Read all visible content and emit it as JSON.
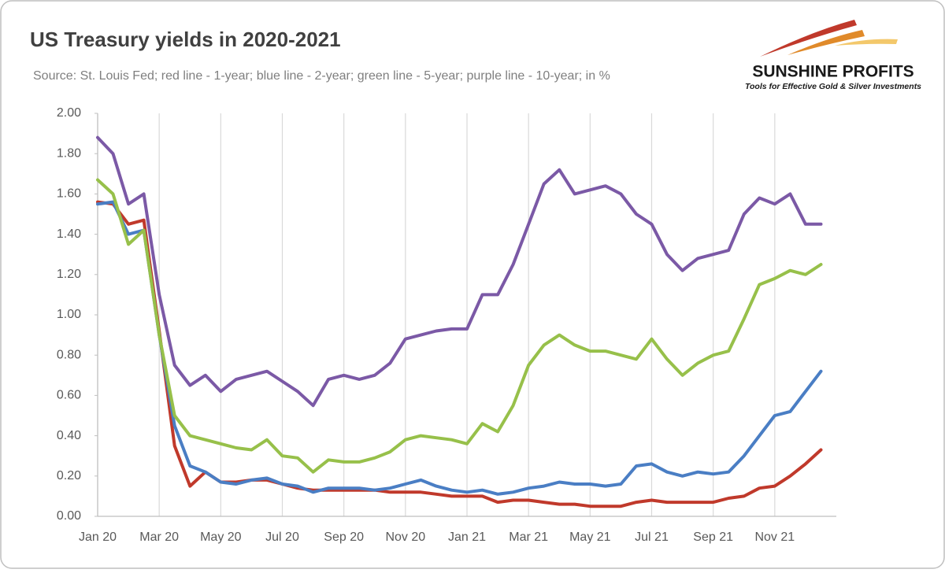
{
  "chart_data": {
    "type": "line",
    "title": "US Treasury  yields in 2020-2021",
    "subtitle": "Source: St. Louis Fed; red line - 1-year; blue line - 2-year; green line - 5-year; purple line - 10-year; in %",
    "categories": [
      "Jan 20",
      null,
      null,
      null,
      "Mar 20",
      null,
      null,
      null,
      "May 20",
      null,
      null,
      null,
      "Jul 20",
      null,
      null,
      null,
      "Sep 20",
      null,
      null,
      null,
      "Nov 20",
      null,
      null,
      null,
      "Jan 21",
      null,
      null,
      null,
      "Mar 21",
      null,
      null,
      null,
      "May 21",
      null,
      null,
      null,
      "Jul 21",
      null,
      null,
      null,
      "Sep 21",
      null,
      null,
      null,
      "Nov 21",
      null,
      null,
      null
    ],
    "series": [
      {
        "color": "#c0392b",
        "values": [
          1.56,
          1.55,
          1.45,
          1.47,
          0.92,
          0.35,
          0.15,
          0.22,
          0.17,
          0.17,
          0.18,
          0.18,
          0.16,
          0.14,
          0.13,
          0.13,
          0.13,
          0.13,
          0.13,
          0.12,
          0.12,
          0.12,
          0.11,
          0.1,
          0.1,
          0.1,
          0.07,
          0.08,
          0.08,
          0.07,
          0.06,
          0.06,
          0.05,
          0.05,
          0.05,
          0.07,
          0.08,
          0.07,
          0.07,
          0.07,
          0.07,
          0.09,
          0.1,
          0.14,
          0.15,
          0.2,
          0.26,
          0.33
        ]
      },
      {
        "color": "#4a7ec4",
        "values": [
          1.55,
          1.56,
          1.4,
          1.42,
          0.9,
          0.45,
          0.25,
          0.22,
          0.17,
          0.16,
          0.18,
          0.19,
          0.16,
          0.15,
          0.12,
          0.14,
          0.14,
          0.14,
          0.13,
          0.14,
          0.16,
          0.18,
          0.15,
          0.13,
          0.12,
          0.13,
          0.11,
          0.12,
          0.14,
          0.15,
          0.17,
          0.16,
          0.16,
          0.15,
          0.16,
          0.25,
          0.26,
          0.22,
          0.2,
          0.22,
          0.21,
          0.22,
          0.3,
          0.4,
          0.5,
          0.52,
          0.62,
          0.72
        ]
      },
      {
        "color": "#97c04a",
        "values": [
          1.67,
          1.6,
          1.35,
          1.42,
          0.9,
          0.5,
          0.4,
          0.38,
          0.36,
          0.34,
          0.33,
          0.38,
          0.3,
          0.29,
          0.22,
          0.28,
          0.27,
          0.27,
          0.29,
          0.32,
          0.38,
          0.4,
          0.39,
          0.38,
          0.36,
          0.46,
          0.42,
          0.55,
          0.75,
          0.85,
          0.9,
          0.85,
          0.82,
          0.82,
          0.8,
          0.78,
          0.88,
          0.78,
          0.7,
          0.76,
          0.8,
          0.82,
          0.98,
          1.15,
          1.18,
          1.22,
          1.2,
          1.25
        ]
      },
      {
        "color": "#7b59a6",
        "values": [
          1.88,
          1.8,
          1.55,
          1.6,
          1.1,
          0.75,
          0.65,
          0.7,
          0.62,
          0.68,
          0.7,
          0.72,
          0.67,
          0.62,
          0.55,
          0.68,
          0.7,
          0.68,
          0.7,
          0.76,
          0.88,
          0.9,
          0.92,
          0.93,
          0.93,
          1.1,
          1.1,
          1.25,
          1.45,
          1.65,
          1.72,
          1.6,
          1.62,
          1.64,
          1.6,
          1.5,
          1.45,
          1.3,
          1.22,
          1.28,
          1.3,
          1.32,
          1.5,
          1.58,
          1.55,
          1.6,
          1.45,
          1.45
        ]
      }
    ],
    "ylim": [
      0,
      2
    ],
    "yticks": [
      {
        "value": 0,
        "label": "0.00"
      },
      {
        "value": 0.2,
        "label": "0.20"
      },
      {
        "value": 0.4,
        "label": "0.40"
      },
      {
        "value": 0.6,
        "label": "0.60"
      },
      {
        "value": 0.8,
        "label": "0.80"
      },
      {
        "value": 1,
        "label": "1.00"
      },
      {
        "value": 1.2,
        "label": "1.20"
      },
      {
        "value": 1.4,
        "label": "1.40"
      },
      {
        "value": 1.6,
        "label": "1.60"
      },
      {
        "value": 1.8,
        "label": "1.80"
      },
      {
        "value": 2,
        "label": "2.00"
      }
    ],
    "grid": true
  },
  "logo": {
    "name": "SUNSHINE PROFITS",
    "tagline": "Tools for Effective Gold & Silver Investments"
  }
}
